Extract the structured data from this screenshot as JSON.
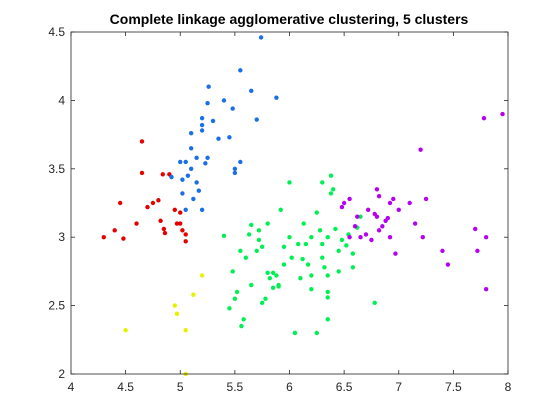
{
  "chart_data": {
    "type": "scatter",
    "title": "Complete linkage agglomerative clustering, 5 clusters",
    "xlabel": "",
    "ylabel": "",
    "xlim": [
      4,
      8
    ],
    "ylim": [
      2,
      4.5
    ],
    "xticks": [
      "4",
      "4.5",
      "5",
      "5.5",
      "6",
      "6.5",
      "7",
      "7.5",
      "8"
    ],
    "yticks": [
      "2",
      "2.5",
      "3",
      "3.5",
      "4",
      "4.5"
    ],
    "grid": false,
    "legend": "none",
    "series": [
      {
        "color": "#e50000",
        "points": [
          [
            4.3,
            3.0
          ],
          [
            4.4,
            3.05
          ],
          [
            4.45,
            3.25
          ],
          [
            4.48,
            2.99
          ],
          [
            4.6,
            3.1
          ],
          [
            4.65,
            3.7
          ],
          [
            4.65,
            3.47
          ],
          [
            4.7,
            3.22
          ],
          [
            4.75,
            3.25
          ],
          [
            4.8,
            3.27
          ],
          [
            4.82,
            3.12
          ],
          [
            4.84,
            3.46
          ],
          [
            4.85,
            3.06
          ],
          [
            4.86,
            3.03
          ],
          [
            4.9,
            3.46
          ],
          [
            4.95,
            3.2
          ],
          [
            4.97,
            3.1
          ],
          [
            5.0,
            3.1
          ],
          [
            5.0,
            3.18
          ],
          [
            5.05,
            3.02
          ],
          [
            5.05,
            2.97
          ],
          [
            5.02,
            3.05
          ]
        ]
      },
      {
        "color": "#1a6fe6",
        "points": [
          [
            4.92,
            3.44
          ],
          [
            5.0,
            3.55
          ],
          [
            5.02,
            3.42
          ],
          [
            5.05,
            3.55
          ],
          [
            5.02,
            3.32
          ],
          [
            5.05,
            3.2
          ],
          [
            5.07,
            3.45
          ],
          [
            5.1,
            3.5
          ],
          [
            5.1,
            3.65
          ],
          [
            5.1,
            3.76
          ],
          [
            5.12,
            3.28
          ],
          [
            5.15,
            3.4
          ],
          [
            5.15,
            3.58
          ],
          [
            5.17,
            3.34
          ],
          [
            5.2,
            3.2
          ],
          [
            5.2,
            3.78
          ],
          [
            5.2,
            3.82
          ],
          [
            5.2,
            3.87
          ],
          [
            5.23,
            3.54
          ],
          [
            5.25,
            3.58
          ],
          [
            5.25,
            3.98
          ],
          [
            5.26,
            4.1
          ],
          [
            5.3,
            3.85
          ],
          [
            5.35,
            3.72
          ],
          [
            5.4,
            4.0
          ],
          [
            5.45,
            3.73
          ],
          [
            5.48,
            3.94
          ],
          [
            5.5,
            3.47
          ],
          [
            5.5,
            3.5
          ],
          [
            5.55,
            4.22
          ],
          [
            5.55,
            3.55
          ],
          [
            5.65,
            4.07
          ],
          [
            5.7,
            3.86
          ],
          [
            5.74,
            4.46
          ],
          [
            5.88,
            4.02
          ]
        ]
      },
      {
        "color": "#00f054",
        "points": [
          [
            5.4,
            3.01
          ],
          [
            5.45,
            2.48
          ],
          [
            5.48,
            2.75
          ],
          [
            5.5,
            2.55
          ],
          [
            5.52,
            2.6
          ],
          [
            5.55,
            2.9
          ],
          [
            5.56,
            2.35
          ],
          [
            5.58,
            2.4
          ],
          [
            5.6,
            2.85
          ],
          [
            5.63,
            3.02
          ],
          [
            5.65,
            3.09
          ],
          [
            5.65,
            2.65
          ],
          [
            5.7,
            2.9
          ],
          [
            5.72,
            3.05
          ],
          [
            5.72,
            2.98
          ],
          [
            5.75,
            2.93
          ],
          [
            5.75,
            2.52
          ],
          [
            5.78,
            2.55
          ],
          [
            5.8,
            3.1
          ],
          [
            5.8,
            2.74
          ],
          [
            5.82,
            2.7
          ],
          [
            5.85,
            2.74
          ],
          [
            5.85,
            2.63
          ],
          [
            5.88,
            2.72
          ],
          [
            5.9,
            2.64
          ],
          [
            5.9,
            2.65
          ],
          [
            5.92,
            3.2
          ],
          [
            5.95,
            2.8
          ],
          [
            5.95,
            2.93
          ],
          [
            6.0,
            3.4
          ],
          [
            6.0,
            3.0
          ],
          [
            6.02,
            2.85
          ],
          [
            6.05,
            2.3
          ],
          [
            6.05,
            2.3
          ],
          [
            6.08,
            2.95
          ],
          [
            6.1,
            2.7
          ],
          [
            6.12,
            2.84
          ],
          [
            6.13,
            3.1
          ],
          [
            6.15,
            2.95
          ],
          [
            6.17,
            2.8
          ],
          [
            6.2,
            3.0
          ],
          [
            6.2,
            2.62
          ],
          [
            6.2,
            2.72
          ],
          [
            6.25,
            3.18
          ],
          [
            6.25,
            2.3
          ],
          [
            6.28,
            3.05
          ],
          [
            6.3,
            3.4
          ],
          [
            6.3,
            2.95
          ],
          [
            6.3,
            2.85
          ],
          [
            6.32,
            2.78
          ],
          [
            6.35,
            3.0
          ],
          [
            6.35,
            2.6
          ],
          [
            6.35,
            2.72
          ],
          [
            6.35,
            2.56
          ],
          [
            6.35,
            2.4
          ],
          [
            6.38,
            3.45
          ],
          [
            6.38,
            3.32
          ],
          [
            6.4,
            3.35
          ],
          [
            6.42,
            3.06
          ],
          [
            6.45,
            2.75
          ],
          [
            6.45,
            2.9
          ],
          [
            6.48,
            2.98
          ],
          [
            6.52,
            2.94
          ],
          [
            6.54,
            3.02
          ],
          [
            6.58,
            2.78
          ],
          [
            6.58,
            2.88
          ],
          [
            6.62,
            3.07
          ],
          [
            6.65,
            3.15
          ],
          [
            6.78,
            2.52
          ]
        ]
      },
      {
        "color": "#e8f000",
        "points": [
          [
            4.5,
            2.32
          ],
          [
            4.95,
            2.5
          ],
          [
            4.97,
            2.44
          ],
          [
            5.05,
            2.32
          ],
          [
            5.05,
            2.0
          ],
          [
            5.12,
            2.58
          ],
          [
            5.2,
            2.72
          ]
        ]
      },
      {
        "color": "#b500f0",
        "points": [
          [
            6.48,
            3.22
          ],
          [
            6.5,
            3.25
          ],
          [
            6.55,
            3.28
          ],
          [
            6.55,
            3.0
          ],
          [
            6.6,
            3.08
          ],
          [
            6.62,
            3.15
          ],
          [
            6.65,
            3.0
          ],
          [
            6.7,
            3.02
          ],
          [
            6.72,
            3.2
          ],
          [
            6.75,
            2.98
          ],
          [
            6.78,
            3.17
          ],
          [
            6.8,
            3.15
          ],
          [
            6.8,
            3.35
          ],
          [
            6.82,
            3.3
          ],
          [
            6.82,
            3.05
          ],
          [
            6.85,
            3.08
          ],
          [
            6.88,
            3.12
          ],
          [
            6.9,
            3.14
          ],
          [
            6.92,
            3.0
          ],
          [
            6.92,
            3.25
          ],
          [
            6.95,
            3.28
          ],
          [
            6.97,
            2.88
          ],
          [
            7.0,
            3.2
          ],
          [
            7.1,
            3.25
          ],
          [
            7.15,
            3.1
          ],
          [
            7.2,
            3.64
          ],
          [
            7.22,
            3.0
          ],
          [
            7.25,
            3.28
          ],
          [
            7.4,
            2.9
          ],
          [
            7.45,
            2.8
          ],
          [
            7.7,
            3.06
          ],
          [
            7.72,
            2.9
          ],
          [
            7.78,
            3.87
          ],
          [
            7.8,
            3.0
          ],
          [
            7.8,
            2.62
          ],
          [
            7.95,
            3.9
          ]
        ]
      }
    ]
  }
}
